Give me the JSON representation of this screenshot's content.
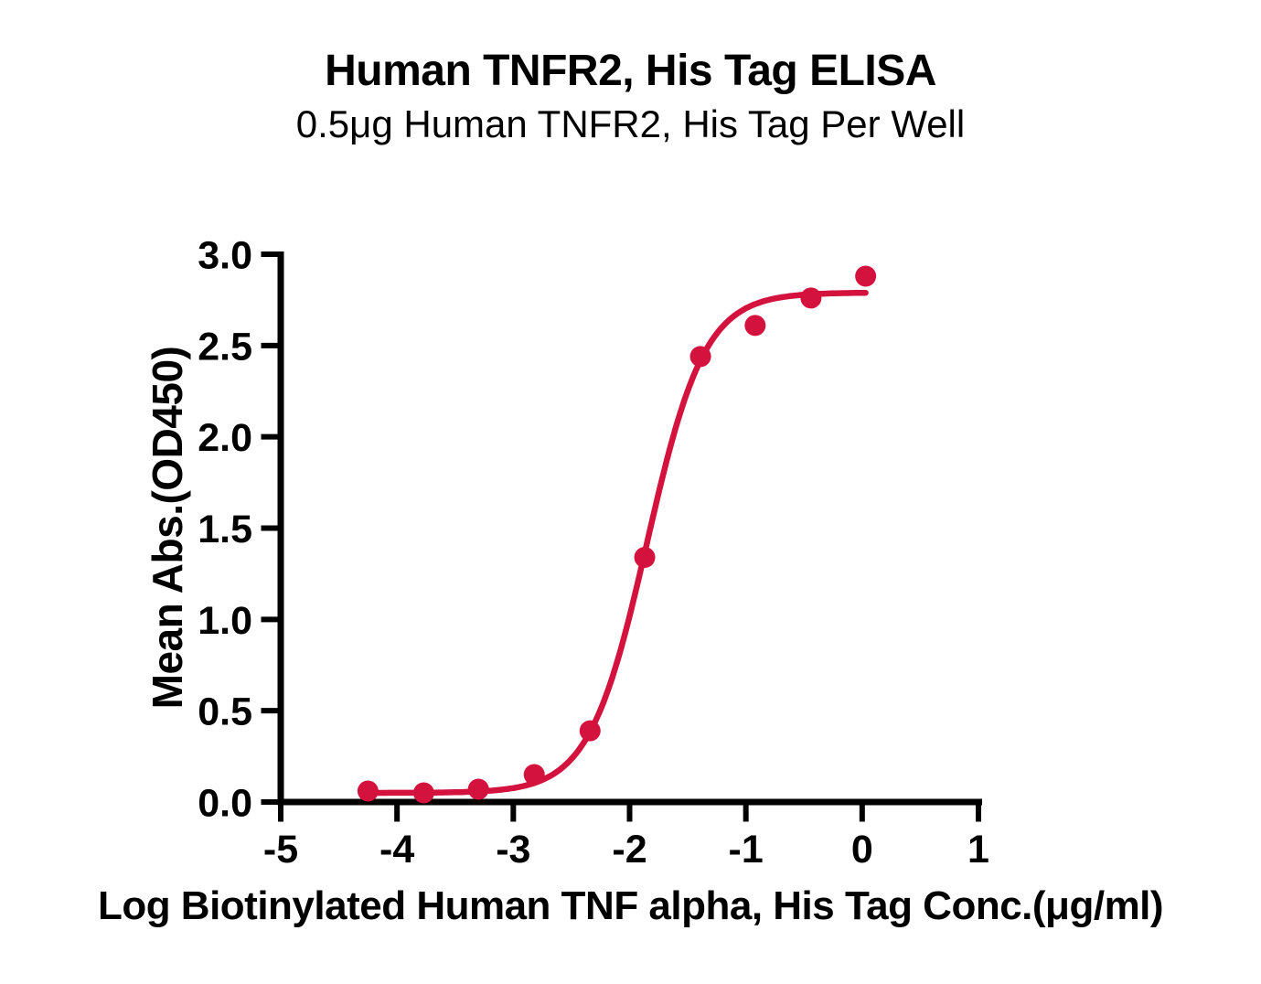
{
  "chart_data": {
    "type": "scatter",
    "title": "Human TNFR2, His Tag ELISA",
    "subtitle": "0.5μg Human TNFR2, His Tag Per Well",
    "xlabel": "Log Biotinylated Human TNF alpha, His Tag Conc.(μg/ml)",
    "ylabel": "Mean Abs.(OD450)",
    "xlim": [
      -5,
      1
    ],
    "ylim": [
      0,
      3
    ],
    "x_ticks": [
      {
        "v": -5,
        "label": "-5"
      },
      {
        "v": -4,
        "label": "-4"
      },
      {
        "v": -3,
        "label": "-3"
      },
      {
        "v": -2,
        "label": "-2"
      },
      {
        "v": -1,
        "label": "-1"
      },
      {
        "v": 0,
        "label": "0"
      },
      {
        "v": 1,
        "label": "1"
      }
    ],
    "y_ticks": [
      {
        "v": 0.0,
        "label": "0.0"
      },
      {
        "v": 0.5,
        "label": "0.5"
      },
      {
        "v": 1.0,
        "label": "1.0"
      },
      {
        "v": 1.5,
        "label": "1.5"
      },
      {
        "v": 2.0,
        "label": "2.0"
      },
      {
        "v": 2.5,
        "label": "2.5"
      },
      {
        "v": 3.0,
        "label": "3.0"
      }
    ],
    "points": [
      {
        "x": -4.25,
        "y": 0.06
      },
      {
        "x": -3.77,
        "y": 0.05
      },
      {
        "x": -3.3,
        "y": 0.07
      },
      {
        "x": -2.82,
        "y": 0.15
      },
      {
        "x": -2.34,
        "y": 0.39
      },
      {
        "x": -1.87,
        "y": 1.34
      },
      {
        "x": -1.39,
        "y": 2.44
      },
      {
        "x": -0.92,
        "y": 2.61
      },
      {
        "x": -0.44,
        "y": 2.76
      },
      {
        "x": 0.03,
        "y": 2.88
      }
    ],
    "fit_curve": {
      "model": "4PL",
      "bottom": 0.05,
      "top": 2.79,
      "logEC50": -1.85,
      "hill": 1.75,
      "x_start": -4.25,
      "x_end": 0.03
    },
    "series_color": "#D4123E",
    "axis_color": "#000000",
    "background_color": "#FFFFFF",
    "grid": false,
    "legend": "none"
  }
}
